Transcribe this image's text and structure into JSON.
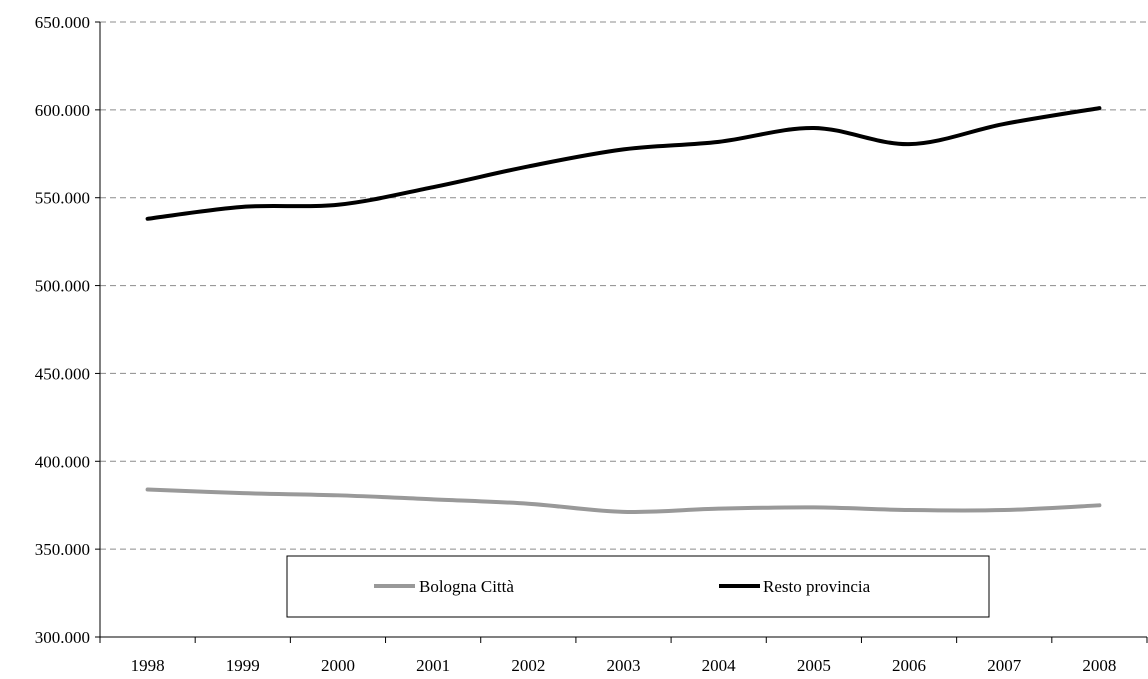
{
  "chart_data": {
    "type": "line",
    "title": "",
    "xlabel": "",
    "ylabel": "",
    "categories": [
      "1998",
      "1999",
      "2000",
      "2001",
      "2002",
      "2003",
      "2004",
      "2005",
      "2006",
      "2007",
      "2008"
    ],
    "ylim": [
      300000,
      650000
    ],
    "yticks": [
      300000,
      350000,
      400000,
      450000,
      500000,
      550000,
      600000,
      650000
    ],
    "ytick_labels": [
      "300.000",
      "350.000",
      "400.000",
      "450.000",
      "500.000",
      "550.000",
      "600.000",
      "650.000"
    ],
    "grid": true,
    "legend": "bottom",
    "series": [
      {
        "name": "Bologna Città",
        "color": "#999999",
        "values": [
          383946,
          381856,
          380635,
          378356,
          375862,
          371217,
          373026,
          373743,
          372256,
          372256,
          374944
        ]
      },
      {
        "name": "Resto provincia",
        "color": "#000000",
        "values": [
          538000,
          544800,
          546000,
          556000,
          567800,
          577500,
          581800,
          589700,
          580500,
          592000,
          601000
        ]
      }
    ]
  }
}
